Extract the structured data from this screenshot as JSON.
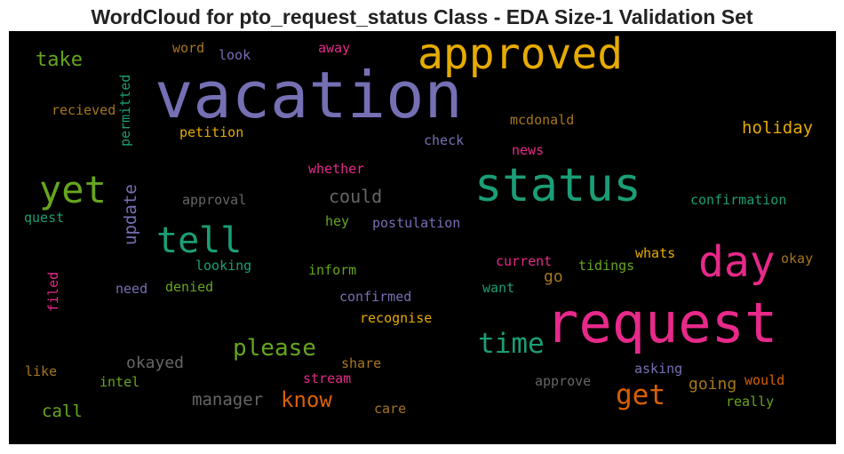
{
  "title": "WordCloud for pto_request_status Class - EDA Size-1 Validation Set",
  "words": [
    {
      "text": "vacation",
      "color": "#7570b3"
    },
    {
      "text": "approved",
      "color": "#e6ab02"
    },
    {
      "text": "request",
      "color": "#e7298a"
    },
    {
      "text": "status",
      "color": "#1b9e77"
    },
    {
      "text": "day",
      "color": "#e7298a"
    },
    {
      "text": "yet",
      "color": "#66a61e"
    },
    {
      "text": "tell",
      "color": "#1b9e77"
    },
    {
      "text": "time",
      "color": "#1b9e77"
    },
    {
      "text": "please",
      "color": "#66a61e"
    },
    {
      "text": "get",
      "color": "#d95f02"
    },
    {
      "text": "know",
      "color": "#d95f02"
    },
    {
      "text": "take",
      "color": "#66a61e"
    },
    {
      "text": "holiday",
      "color": "#e6ab02"
    },
    {
      "text": "could",
      "color": "#666666"
    },
    {
      "text": "update",
      "color": "#7570b3"
    },
    {
      "text": "manager",
      "color": "#666666"
    },
    {
      "text": "okayed",
      "color": "#666666"
    },
    {
      "text": "call",
      "color": "#66a61e"
    },
    {
      "text": "going",
      "color": "#a6761d"
    },
    {
      "text": "word",
      "color": "#a6761d"
    },
    {
      "text": "look",
      "color": "#7570b3"
    },
    {
      "text": "away",
      "color": "#e7298a"
    },
    {
      "text": "permitted",
      "color": "#1b9e77"
    },
    {
      "text": "recieved",
      "color": "#a6761d"
    },
    {
      "text": "petition",
      "color": "#e6ab02"
    },
    {
      "text": "mcdonald",
      "color": "#a6761d"
    },
    {
      "text": "check",
      "color": "#7570b3"
    },
    {
      "text": "news",
      "color": "#e7298a"
    },
    {
      "text": "whether",
      "color": "#e7298a"
    },
    {
      "text": "approval",
      "color": "#666666"
    },
    {
      "text": "confirmation",
      "color": "#1b9e77"
    },
    {
      "text": "quest",
      "color": "#1b9e77"
    },
    {
      "text": "hey",
      "color": "#66a61e"
    },
    {
      "text": "postulation",
      "color": "#7570b3"
    },
    {
      "text": "whats",
      "color": "#e6ab02"
    },
    {
      "text": "okay",
      "color": "#a6761d"
    },
    {
      "text": "looking",
      "color": "#1b9e77"
    },
    {
      "text": "inform",
      "color": "#66a61e"
    },
    {
      "text": "current",
      "color": "#e7298a"
    },
    {
      "text": "tidings",
      "color": "#66a61e"
    },
    {
      "text": "filed",
      "color": "#e7298a"
    },
    {
      "text": "need",
      "color": "#7570b3"
    },
    {
      "text": "denied",
      "color": "#66a61e"
    },
    {
      "text": "confirmed",
      "color": "#7570b3"
    },
    {
      "text": "want",
      "color": "#1b9e77"
    },
    {
      "text": "go",
      "color": "#a6761d"
    },
    {
      "text": "recognise",
      "color": "#e6ab02"
    },
    {
      "text": "like",
      "color": "#a6761d"
    },
    {
      "text": "share",
      "color": "#a6761d"
    },
    {
      "text": "asking",
      "color": "#7570b3"
    },
    {
      "text": "intel",
      "color": "#66a61e"
    },
    {
      "text": "stream",
      "color": "#e7298a"
    },
    {
      "text": "approve",
      "color": "#666666"
    },
    {
      "text": "would",
      "color": "#d95f02"
    },
    {
      "text": "care",
      "color": "#a6761d"
    },
    {
      "text": "really",
      "color": "#66a61e"
    }
  ]
}
